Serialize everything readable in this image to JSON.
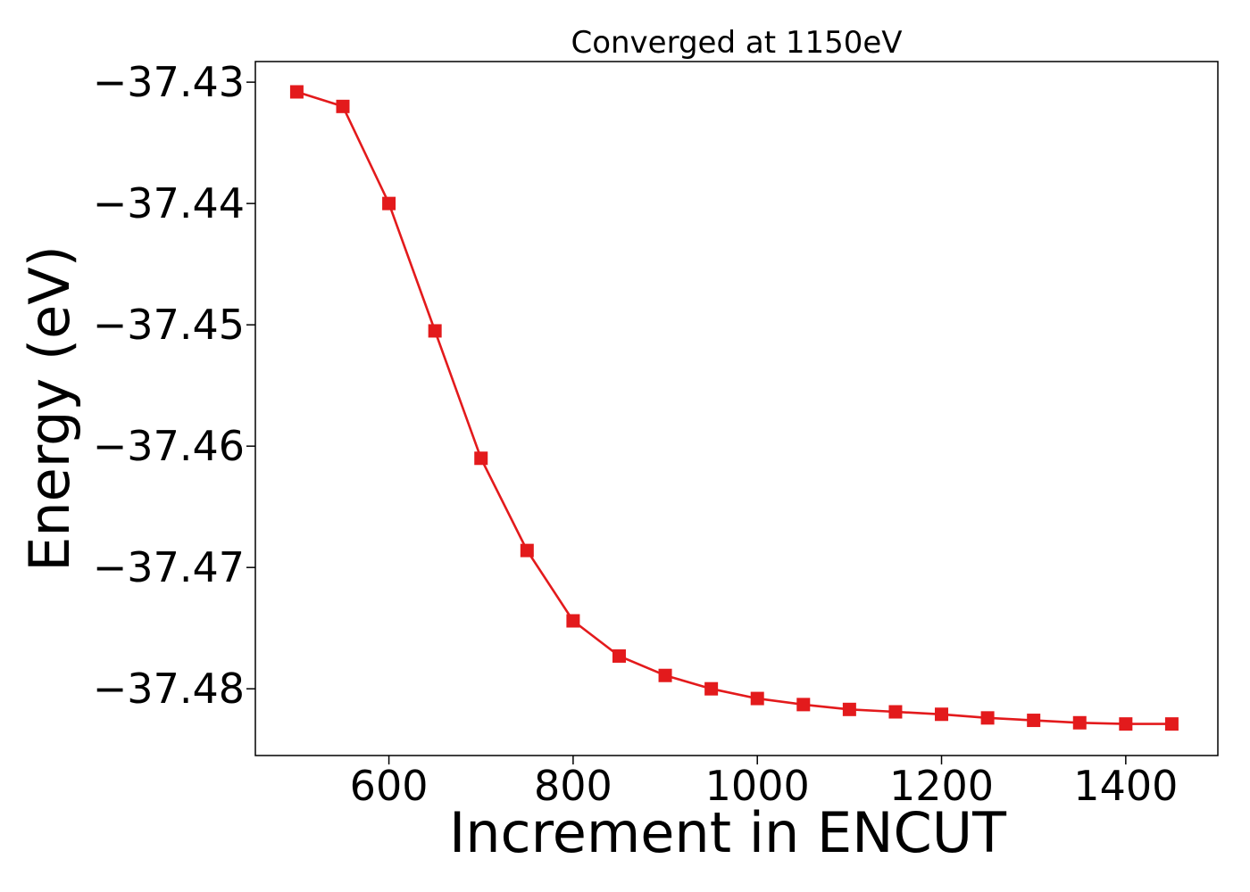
{
  "chart_data": {
    "type": "line",
    "title": "Converged at 1150eV",
    "xlabel": "Increment in ENCUT",
    "ylabel": "Energy (eV)",
    "xlim": [
      455,
      1500
    ],
    "ylim": [
      -37.4855,
      -37.4283
    ],
    "xticks": [
      600,
      800,
      1000,
      1200,
      1400
    ],
    "xtick_labels": [
      "600",
      "800",
      "1000",
      "1200",
      "1400"
    ],
    "yticks": [
      -37.43,
      -37.44,
      -37.45,
      -37.46,
      -37.47,
      -37.48
    ],
    "ytick_labels": [
      "−37.43",
      "−37.44",
      "−37.45",
      "−37.46",
      "−37.47",
      "−37.48"
    ],
    "grid": false,
    "legend": null,
    "series": [
      {
        "color": "#e31a1c",
        "marker": "square",
        "x": [
          500,
          550,
          600,
          650,
          700,
          750,
          800,
          850,
          900,
          950,
          1000,
          1050,
          1100,
          1150,
          1200,
          1250,
          1300,
          1350,
          1400,
          1450
        ],
        "y": [
          -37.4308,
          -37.432,
          -37.44,
          -37.4505,
          -37.461,
          -37.4686,
          -37.4744,
          -37.4773,
          -37.4789,
          -37.48,
          -37.4808,
          -37.4813,
          -37.4817,
          -37.4819,
          -37.4821,
          -37.4824,
          -37.4826,
          -37.4828,
          -37.4829,
          -37.4829
        ]
      }
    ]
  }
}
